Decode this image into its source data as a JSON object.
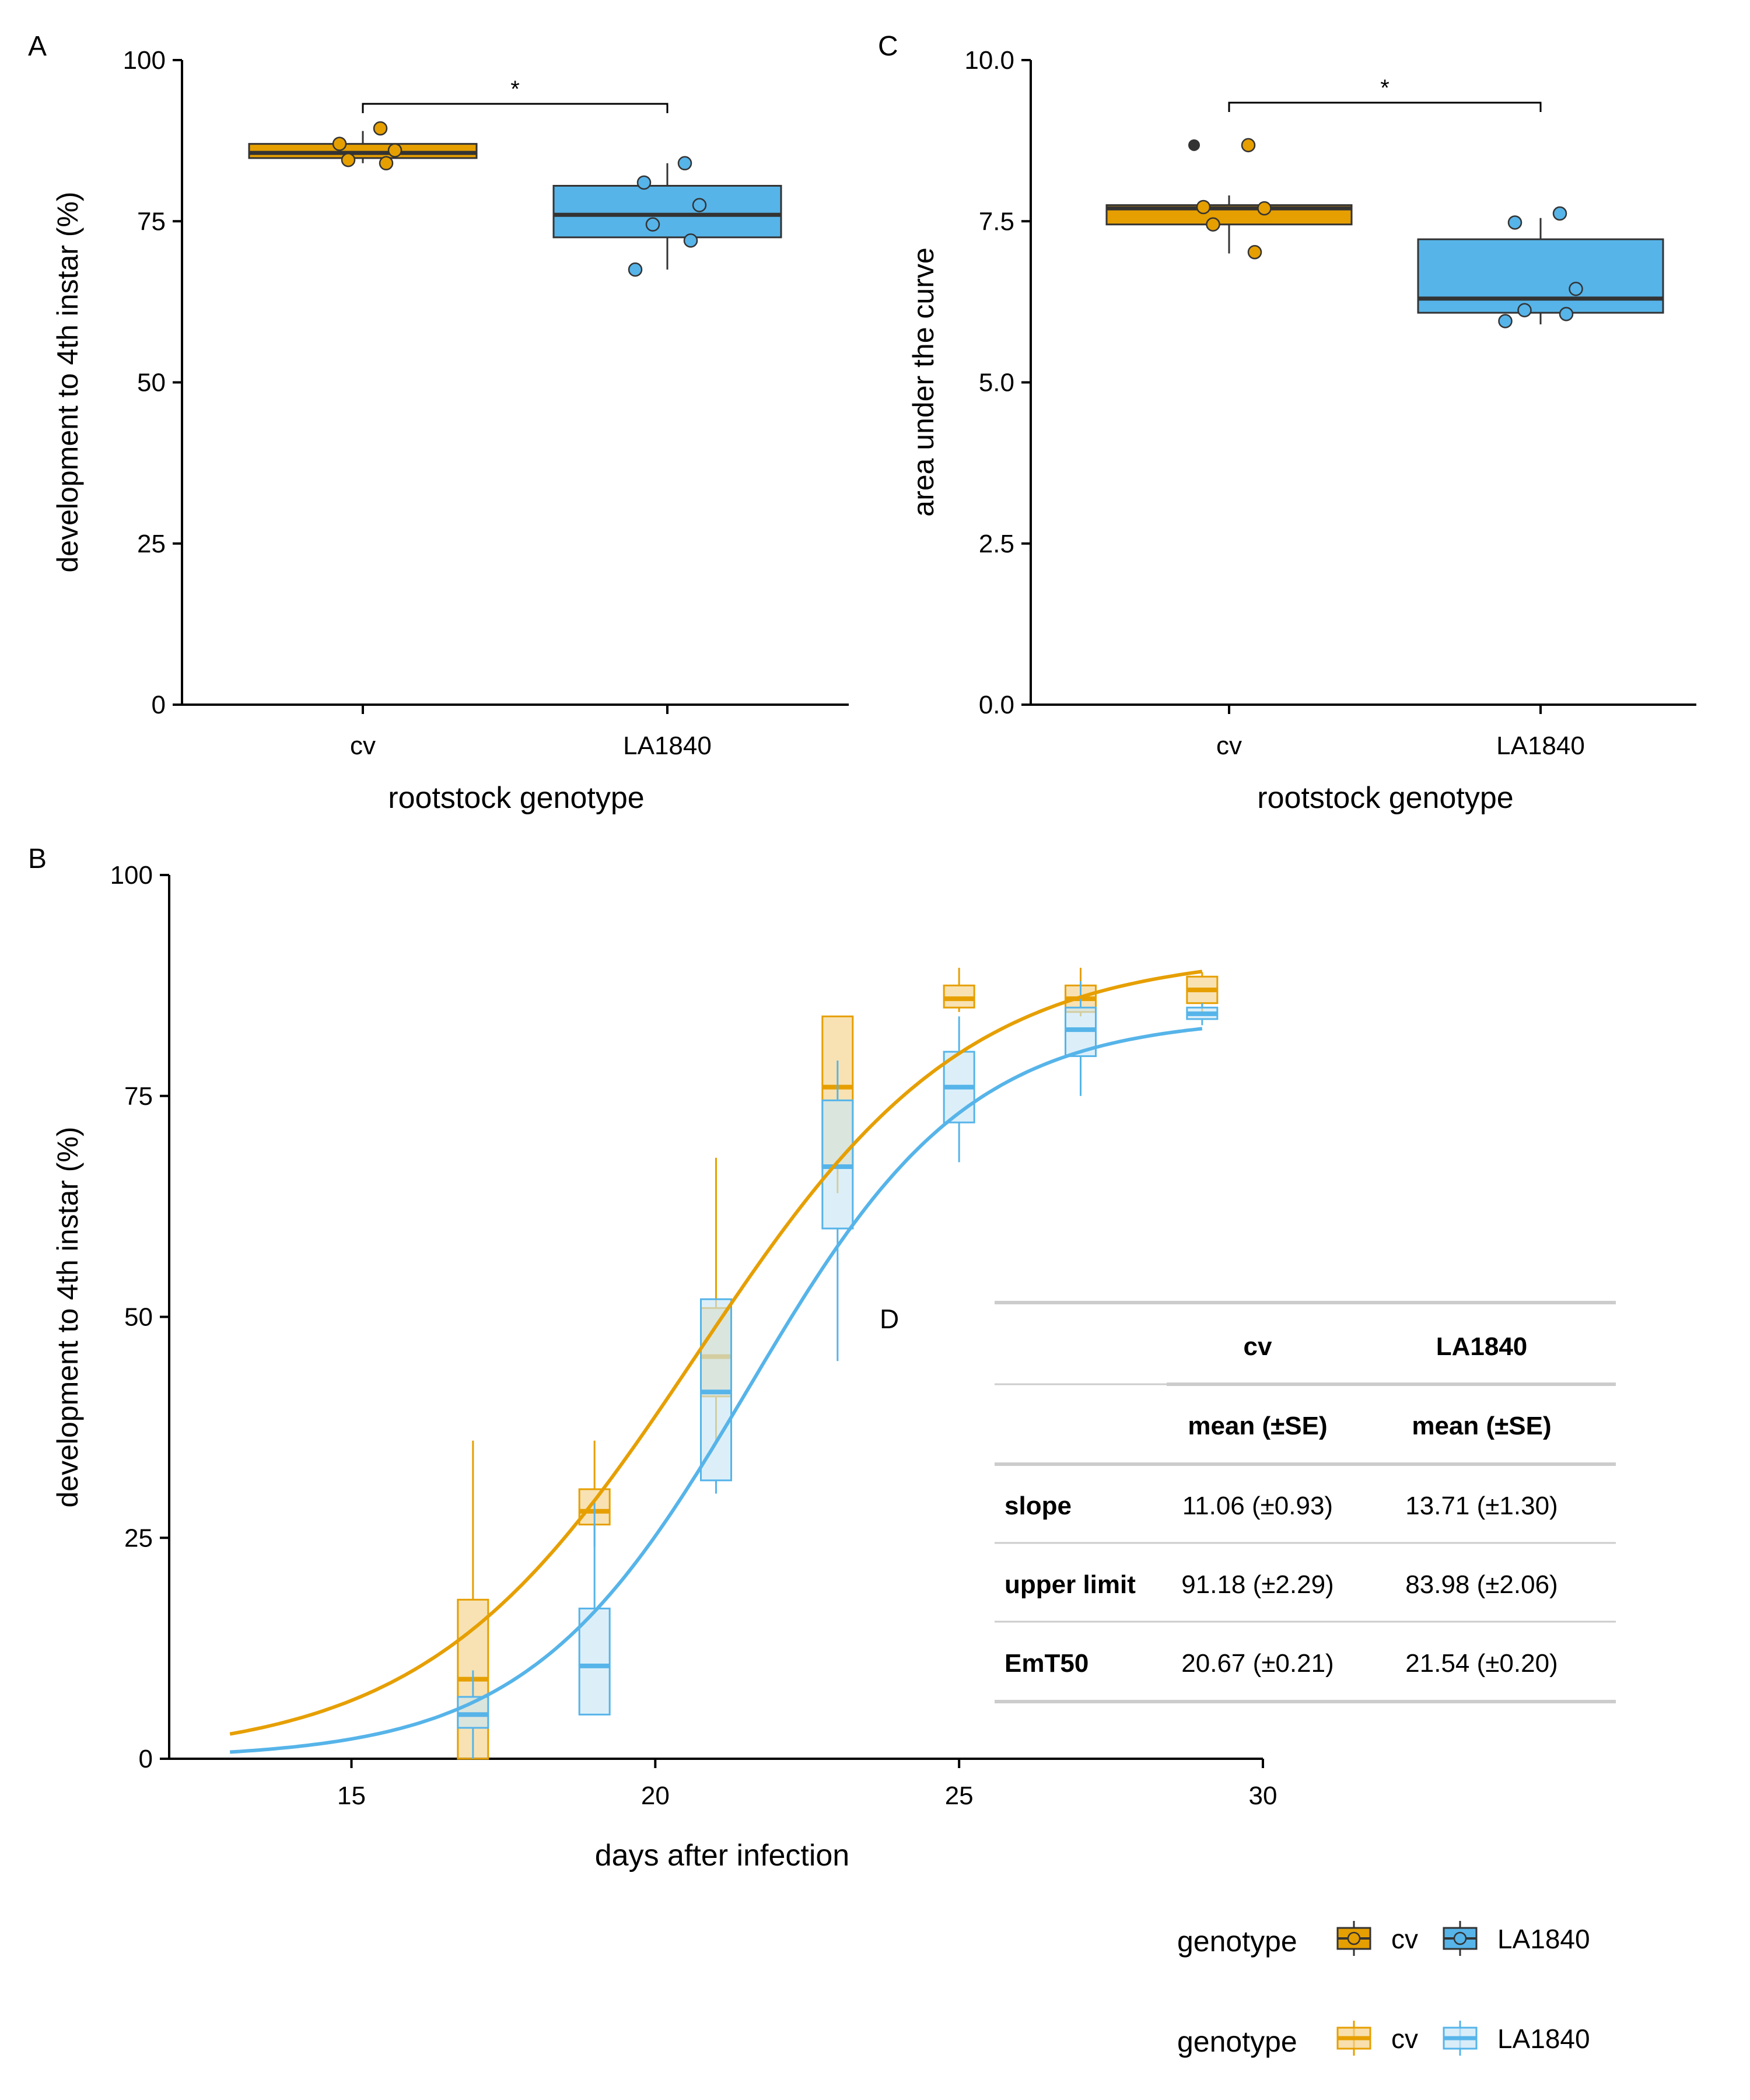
{
  "colors": {
    "cv": "#E69F00",
    "la1840": "#56B4E9",
    "cv_fill_light": "#F5D28A",
    "la1840_fill_light": "#C9E6F6",
    "axis": "#000000",
    "median": "#333333",
    "table_rule": "#cccccc"
  },
  "panel_labels": {
    "a": "A",
    "b": "B",
    "c": "C",
    "d": "D"
  },
  "legend": {
    "title": "genotype",
    "labels": [
      "cv",
      "LA1840"
    ]
  },
  "table": {
    "columns": [
      "cv",
      "LA1840"
    ],
    "subheaders": [
      "mean (±SE)",
      "mean (±SE)"
    ],
    "rows": [
      {
        "label": "slope",
        "cv": "11.06 (±0.93)",
        "la": "13.71 (±1.30)"
      },
      {
        "label": "upper limit",
        "cv": "91.18 (±2.29)",
        "la": "83.98 (±2.06)"
      },
      {
        "label": "EmT50",
        "cv": "20.67 (±0.21)",
        "la": "21.54 (±0.20)"
      }
    ]
  },
  "chart_data": [
    {
      "id": "A",
      "type": "box",
      "xlabel": "rootstock genotype",
      "ylabel": "development to 4th instar (%)",
      "ylim": [
        0,
        100
      ],
      "yticks": [
        0,
        25,
        50,
        75,
        100
      ],
      "ytick_labels": [
        "0",
        "25",
        "50",
        "75",
        "100"
      ],
      "categories": [
        "cv",
        "LA1840"
      ],
      "significance": "*",
      "boxes": [
        {
          "name": "cv",
          "min": 84.0,
          "q1": 84.8,
          "median": 85.6,
          "q3": 87.0,
          "max": 89.0,
          "points": [
            89.4,
            87.0,
            86.0,
            84.5,
            84.0
          ]
        },
        {
          "name": "LA1840",
          "min": 67.5,
          "q1": 72.5,
          "median": 76.0,
          "q3": 80.5,
          "max": 84.0,
          "points": [
            84.0,
            81.0,
            77.5,
            74.5,
            72.0,
            67.5
          ]
        }
      ]
    },
    {
      "id": "C",
      "type": "box",
      "xlabel": "rootstock genotype",
      "ylabel": "area under the curve",
      "ylim": [
        0,
        10
      ],
      "yticks": [
        0,
        2.5,
        5,
        7.5,
        10
      ],
      "ytick_labels": [
        "0.0",
        "2.5",
        "5.0",
        "7.5",
        "10.0"
      ],
      "categories": [
        "cv",
        "LA1840"
      ],
      "significance": "*",
      "boxes": [
        {
          "name": "cv",
          "min": 7.0,
          "q1": 7.45,
          "median": 7.7,
          "q3": 7.75,
          "max": 7.9,
          "outliers": [
            8.68
          ],
          "points": [
            8.68,
            7.72,
            7.7,
            7.45,
            7.02
          ]
        },
        {
          "name": "LA1840",
          "min": 5.9,
          "q1": 6.08,
          "median": 6.3,
          "q3": 7.22,
          "max": 7.55,
          "points": [
            7.62,
            7.48,
            6.45,
            6.12,
            6.06,
            5.95
          ]
        }
      ]
    },
    {
      "id": "B",
      "type": "line",
      "xlabel": "days after infection",
      "ylabel": "development to 4th instar (%)",
      "xlim": [
        12,
        30
      ],
      "ylim": [
        0,
        100
      ],
      "xticks": [
        15,
        20,
        25,
        30
      ],
      "yticks": [
        0,
        25,
        50,
        75,
        100
      ],
      "curves": [
        {
          "name": "cv",
          "upper": 91.18,
          "emt50": 20.67,
          "steepness": 0.45,
          "x_start": 13,
          "x_end": 29
        },
        {
          "name": "LA1840",
          "upper": 83.98,
          "emt50": 21.54,
          "steepness": 0.55,
          "x_start": 13,
          "x_end": 29
        }
      ],
      "boxes": [
        {
          "group": "cv",
          "x": 17,
          "min": 0,
          "q1": 0,
          "median": 9,
          "q3": 18,
          "max": 36
        },
        {
          "group": "cv",
          "x": 19,
          "min": 24,
          "q1": 26.5,
          "median": 28,
          "q3": 30.5,
          "max": 36
        },
        {
          "group": "cv",
          "x": 21,
          "min": 36,
          "q1": 41,
          "median": 45.5,
          "q3": 51,
          "max": 68
        },
        {
          "group": "cv",
          "x": 23,
          "min": 64,
          "q1": 67,
          "median": 76,
          "q3": 84,
          "max": 84
        },
        {
          "group": "cv",
          "x": 25,
          "min": 84.5,
          "q1": 85,
          "median": 86,
          "q3": 87.5,
          "max": 89.5
        },
        {
          "group": "cv",
          "x": 27,
          "min": 84,
          "q1": 84.5,
          "median": 86,
          "q3": 87.5,
          "max": 89.5
        },
        {
          "group": "cv",
          "x": 29,
          "min": 84.5,
          "q1": 85.5,
          "median": 87,
          "q3": 88.5,
          "max": 89
        },
        {
          "group": "LA1840",
          "x": 17,
          "min": 0,
          "q1": 3.5,
          "median": 5,
          "q3": 7,
          "max": 10
        },
        {
          "group": "LA1840",
          "x": 19,
          "min": 5,
          "q1": 5,
          "median": 10.5,
          "q3": 17,
          "max": 29
        },
        {
          "group": "LA1840",
          "x": 21,
          "min": 30,
          "q1": 31.5,
          "median": 41.5,
          "q3": 52,
          "max": 52
        },
        {
          "group": "LA1840",
          "x": 23,
          "min": 45,
          "q1": 60,
          "median": 67,
          "q3": 74.5,
          "max": 79
        },
        {
          "group": "LA1840",
          "x": 25,
          "min": 67.5,
          "q1": 72,
          "median": 76,
          "q3": 80,
          "max": 84
        },
        {
          "group": "LA1840",
          "x": 27,
          "min": 75,
          "q1": 79.5,
          "median": 82.5,
          "q3": 85,
          "max": 88
        },
        {
          "group": "LA1840",
          "x": 29,
          "min": 83,
          "q1": 83.7,
          "median": 84.3,
          "q3": 85,
          "max": 85.5
        }
      ]
    }
  ]
}
